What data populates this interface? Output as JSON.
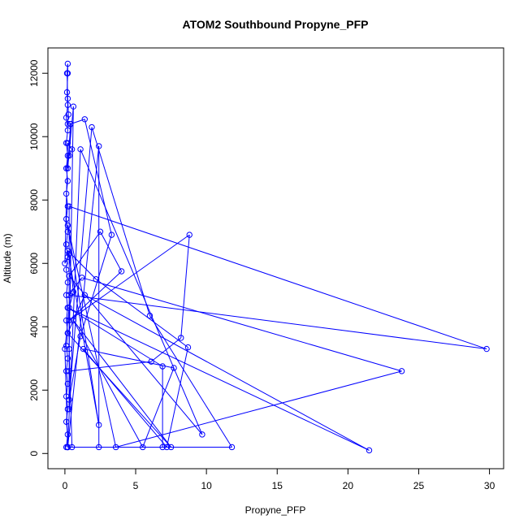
{
  "chart_data": {
    "type": "line",
    "title": "ATOM2 Southbound Propyne_PFP",
    "xlabel": "Propyne_PFP",
    "ylabel": "Altitude (m)",
    "xlim": [
      -1.2,
      31.0
    ],
    "ylim": [
      -480,
      12800
    ],
    "xticks": [
      0,
      5,
      10,
      15,
      20,
      25,
      30
    ],
    "yticks": [
      0,
      2000,
      4000,
      6000,
      8000,
      10000,
      12000
    ],
    "xtick_labels": [
      "0",
      "5",
      "10",
      "15",
      "20",
      "25",
      "30"
    ],
    "ytick_labels": [
      "0",
      "2000",
      "4000",
      "6000",
      "8000",
      "10000",
      "12000"
    ],
    "grid": false,
    "color": "#0000ff",
    "series": [
      {
        "points": [
          [
            0.1,
            200
          ],
          [
            0.2,
            600
          ],
          [
            0.1,
            1000
          ],
          [
            0.2,
            1400
          ],
          [
            0.1,
            1800
          ],
          [
            0.2,
            2200
          ],
          [
            0.1,
            2600
          ],
          [
            0.2,
            3000
          ],
          [
            0.1,
            3400
          ],
          [
            0.2,
            3800
          ],
          [
            0.1,
            4200
          ],
          [
            0.2,
            4600
          ],
          [
            0.1,
            5000
          ],
          [
            0.2,
            5400
          ],
          [
            0.1,
            5800
          ],
          [
            0.2,
            6200
          ],
          [
            0.1,
            6600
          ],
          [
            0.2,
            7000
          ],
          [
            0.1,
            7400
          ],
          [
            0.2,
            7800
          ],
          [
            0.1,
            8200
          ],
          [
            0.2,
            8600
          ],
          [
            0.1,
            9000
          ],
          [
            0.2,
            9400
          ],
          [
            0.1,
            9800
          ],
          [
            0.2,
            10200
          ],
          [
            0.1,
            10600
          ],
          [
            0.2,
            11000
          ],
          [
            0.15,
            11400
          ],
          [
            0.2,
            12000
          ],
          [
            0.2,
            12300
          ],
          [
            0.15,
            12000
          ],
          [
            0.2,
            11200
          ],
          [
            0.25,
            10700
          ],
          [
            0.2,
            10400
          ],
          [
            0.4,
            10400
          ],
          [
            1.4,
            10550
          ],
          [
            3.3,
            6900
          ],
          [
            1.1,
            3700
          ],
          [
            0.3,
            1700
          ],
          [
            1.9,
            10300
          ],
          [
            6.0,
            4350
          ],
          [
            11.8,
            200
          ],
          [
            0.2,
            200
          ],
          [
            2.4,
            9700
          ],
          [
            2.4,
            200
          ],
          [
            0.2,
            200
          ],
          [
            1.1,
            9600
          ],
          [
            9.7,
            600
          ],
          [
            0.3,
            5600
          ],
          [
            2.5,
            7000
          ],
          [
            4.0,
            5750
          ],
          [
            0.3,
            4200
          ],
          [
            8.8,
            6900
          ],
          [
            8.2,
            3650
          ],
          [
            6.1,
            2900
          ],
          [
            0.3,
            2600
          ],
          [
            0.3,
            1400
          ],
          [
            0.3,
            7800
          ],
          [
            29.8,
            3300
          ],
          [
            0.3,
            5000
          ],
          [
            1.2,
            5550
          ],
          [
            23.8,
            2600
          ],
          [
            3.6,
            200
          ],
          [
            0.2,
            7200
          ],
          [
            2.4,
            900
          ],
          [
            0.2,
            6400
          ],
          [
            2.2,
            5500
          ],
          [
            8.7,
            3350
          ],
          [
            7.2,
            200
          ],
          [
            1.3,
            3300
          ],
          [
            7.7,
            2700
          ],
          [
            5.5,
            200
          ],
          [
            0.6,
            4200
          ],
          [
            7.5,
            200
          ],
          [
            0.2,
            3800
          ],
          [
            1.4,
            5000
          ],
          [
            21.5,
            100
          ],
          [
            0.2,
            4600
          ],
          [
            6.9,
            2750
          ],
          [
            6.9,
            200
          ],
          [
            0.2,
            200
          ],
          [
            0.5,
            200
          ],
          [
            0.3,
            3300
          ],
          [
            0.6,
            10950
          ],
          [
            0.2,
            9000
          ],
          [
            0.4,
            10400
          ],
          [
            0.3,
            9400
          ],
          [
            0.5,
            9600
          ],
          [
            0.2,
            9800
          ],
          [
            0.0,
            6000
          ],
          [
            0.3,
            6300
          ],
          [
            0.6,
            5100
          ],
          [
            0.3,
            4600
          ],
          [
            0.0,
            3300
          ],
          [
            0.2,
            200
          ]
        ]
      }
    ]
  }
}
